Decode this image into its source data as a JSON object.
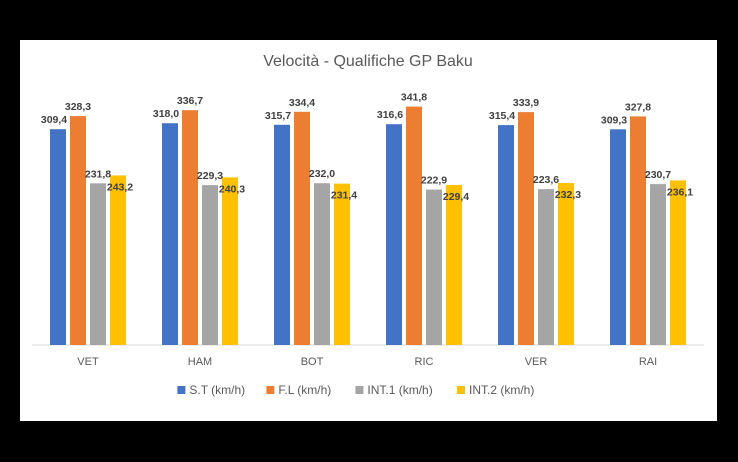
{
  "chart_data": {
    "type": "bar",
    "title": "Velocità - Qualifiche GP Baku",
    "xlabel": "",
    "ylabel": "",
    "ylim": [
      0,
      380
    ],
    "grid": false,
    "legend_position": "bottom",
    "categories": [
      "VET",
      "HAM",
      "BOT",
      "RIC",
      "VER",
      "RAI"
    ],
    "series": [
      {
        "name": "S.T (km/h)",
        "color": "#4472C4",
        "values": [
          309.4,
          318.0,
          315.7,
          316.6,
          315.4,
          309.3
        ],
        "labels": [
          "309,4",
          "318,0",
          "315,7",
          "316,6",
          "315,4",
          "309,3"
        ]
      },
      {
        "name": "F.L (km/h)",
        "color": "#ED7D31",
        "values": [
          328.3,
          336.7,
          334.4,
          341.8,
          333.9,
          327.8
        ],
        "labels": [
          "328,3",
          "336,7",
          "334,4",
          "341,8",
          "333,9",
          "327,8"
        ]
      },
      {
        "name": "INT.1 (km/h)",
        "color": "#A5A5A5",
        "values": [
          231.8,
          229.3,
          232.0,
          222.9,
          223.6,
          230.7
        ],
        "labels": [
          "231,8",
          "229,3",
          "232,0",
          "222,9",
          "223,6",
          "230,7"
        ]
      },
      {
        "name": "INT.2 (km/h)",
        "color": "#FFC000",
        "values": [
          243.2,
          240.3,
          231.4,
          229.4,
          232.3,
          236.1
        ],
        "labels": [
          "243,2",
          "240,3",
          "231,4",
          "229,4",
          "232,3",
          "236,1"
        ]
      }
    ]
  }
}
